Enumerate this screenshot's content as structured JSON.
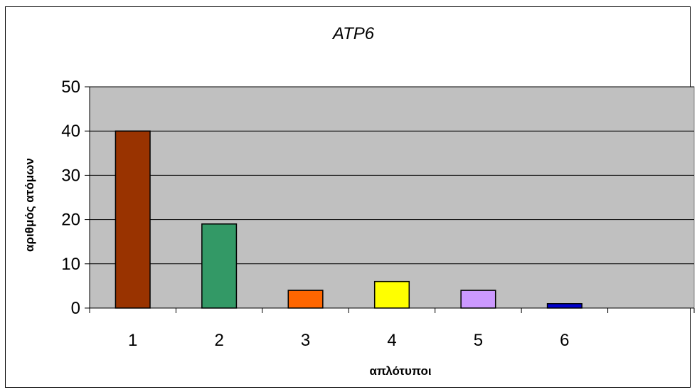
{
  "chart_data": {
    "type": "bar",
    "title": "ATP6",
    "xlabel": "απλότυποι",
    "ylabel": "αριθμός ατόμων",
    "categories": [
      "1",
      "2",
      "3",
      "4",
      "5",
      "6",
      ""
    ],
    "values": [
      40,
      19,
      4,
      6,
      4,
      1,
      null
    ],
    "bar_colors": [
      "#993300",
      "#339966",
      "#FF6600",
      "#FFFF00",
      "#CC99FF",
      "#0000CC",
      null
    ],
    "ylim": [
      0,
      50
    ],
    "yticks": [
      0,
      10,
      20,
      30,
      40,
      50
    ],
    "grid": true,
    "plot_background": "#C0C0C0",
    "legend": "none"
  }
}
